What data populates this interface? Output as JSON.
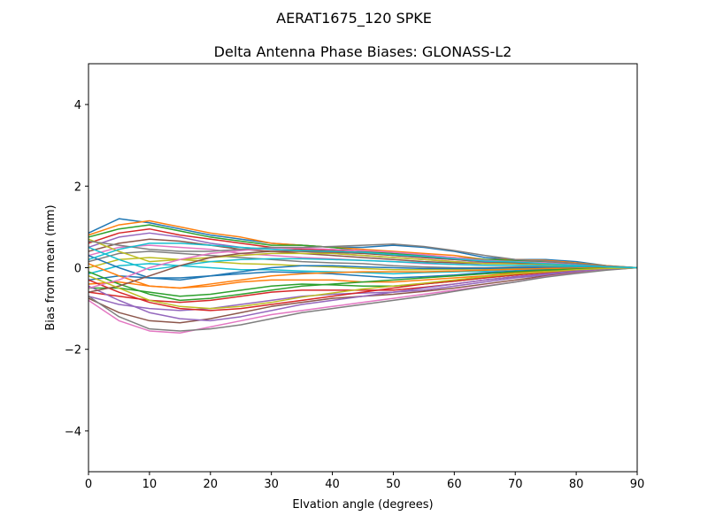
{
  "chart_data": {
    "type": "line",
    "suptitle": "AERAT1675_120   SPKE",
    "title": "Delta Antenna Phase Biases: GLONASS-L2",
    "xlabel": "Elvation angle (degrees)",
    "ylabel": "Bias from mean (mm)",
    "xlim": [
      0,
      90
    ],
    "ylim": [
      -5,
      5
    ],
    "xticks": [
      0,
      10,
      20,
      30,
      40,
      50,
      60,
      70,
      80,
      90
    ],
    "yticks": [
      -4,
      -2,
      0,
      2,
      4
    ],
    "grid": false,
    "x": [
      0,
      5,
      10,
      15,
      20,
      25,
      30,
      35,
      40,
      45,
      50,
      55,
      60,
      65,
      70,
      75,
      80,
      85,
      90
    ],
    "colors": [
      "#1f77b4",
      "#ff7f0e",
      "#2ca02c",
      "#d62728",
      "#9467bd",
      "#8c564b",
      "#e377c2",
      "#7f7f7f",
      "#bcbd22",
      "#17becf"
    ],
    "series": [
      {
        "values": [
          0.85,
          1.2,
          1.1,
          0.95,
          0.8,
          0.7,
          0.6,
          0.55,
          0.5,
          0.5,
          0.55,
          0.5,
          0.4,
          0.25,
          0.2,
          0.2,
          0.15,
          0.05,
          0
        ]
      },
      {
        "values": [
          0.8,
          1.05,
          1.15,
          1.0,
          0.85,
          0.75,
          0.6,
          0.55,
          0.5,
          0.45,
          0.4,
          0.35,
          0.3,
          0.2,
          0.2,
          0.18,
          0.12,
          0.05,
          0
        ]
      },
      {
        "values": [
          0.75,
          0.95,
          1.05,
          0.9,
          0.75,
          0.65,
          0.55,
          0.55,
          0.5,
          0.4,
          0.35,
          0.3,
          0.25,
          0.2,
          0.18,
          0.15,
          0.1,
          0.04,
          0
        ]
      },
      {
        "values": [
          0.6,
          0.85,
          0.95,
          0.8,
          0.7,
          0.6,
          0.5,
          0.45,
          0.42,
          0.38,
          0.3,
          0.25,
          0.2,
          0.15,
          0.15,
          0.12,
          0.08,
          0.03,
          0
        ]
      },
      {
        "values": [
          0.5,
          0.75,
          0.85,
          0.75,
          0.6,
          0.5,
          0.45,
          0.4,
          0.35,
          0.3,
          0.25,
          0.2,
          0.15,
          0.12,
          0.12,
          0.1,
          0.06,
          0.02,
          0
        ]
      },
      {
        "values": [
          0.4,
          0.6,
          0.7,
          0.65,
          0.55,
          0.45,
          0.4,
          0.35,
          0.3,
          0.25,
          0.2,
          0.15,
          0.12,
          0.1,
          0.1,
          0.08,
          0.05,
          0.02,
          0
        ]
      },
      {
        "values": [
          0.3,
          0.5,
          0.55,
          0.5,
          0.45,
          0.35,
          0.3,
          0.25,
          0.22,
          0.18,
          0.15,
          0.1,
          0.08,
          0.06,
          0.06,
          0.05,
          0.03,
          0.01,
          0
        ]
      },
      {
        "values": [
          0.15,
          0.35,
          0.4,
          0.35,
          0.3,
          0.25,
          0.2,
          0.15,
          0.12,
          0.1,
          0.05,
          0.02,
          0.0,
          0.0,
          0.02,
          0.03,
          0.02,
          0.01,
          0
        ]
      },
      {
        "values": [
          0.0,
          0.2,
          0.25,
          0.2,
          0.15,
          0.1,
          0.08,
          0.05,
          0.02,
          -0.02,
          -0.05,
          -0.05,
          -0.04,
          -0.03,
          -0.02,
          0.0,
          0.0,
          0.0,
          0
        ]
      },
      {
        "values": [
          -0.15,
          0.05,
          0.1,
          0.05,
          0.0,
          -0.05,
          -0.05,
          -0.08,
          -0.1,
          -0.12,
          -0.15,
          -0.12,
          -0.1,
          -0.08,
          -0.05,
          -0.03,
          -0.02,
          -0.01,
          0
        ]
      },
      {
        "values": [
          -0.3,
          -0.2,
          -0.25,
          -0.25,
          -0.2,
          -0.15,
          -0.1,
          -0.12,
          -0.15,
          -0.2,
          -0.25,
          -0.22,
          -0.18,
          -0.12,
          -0.08,
          -0.05,
          -0.03,
          -0.01,
          0
        ]
      },
      {
        "values": [
          -0.4,
          -0.35,
          -0.45,
          -0.5,
          -0.45,
          -0.35,
          -0.3,
          -0.3,
          -0.3,
          -0.35,
          -0.35,
          -0.3,
          -0.25,
          -0.2,
          -0.12,
          -0.08,
          -0.05,
          -0.02,
          0
        ]
      },
      {
        "values": [
          -0.5,
          -0.5,
          -0.6,
          -0.7,
          -0.65,
          -0.55,
          -0.45,
          -0.4,
          -0.42,
          -0.45,
          -0.45,
          -0.4,
          -0.33,
          -0.25,
          -0.18,
          -0.1,
          -0.06,
          -0.02,
          0
        ]
      },
      {
        "values": [
          -0.6,
          -0.7,
          -0.8,
          -0.85,
          -0.8,
          -0.7,
          -0.6,
          -0.55,
          -0.55,
          -0.55,
          -0.55,
          -0.48,
          -0.4,
          -0.3,
          -0.22,
          -0.15,
          -0.08,
          -0.03,
          0
        ]
      },
      {
        "values": [
          -0.7,
          -0.9,
          -1.0,
          -1.05,
          -1.0,
          -0.9,
          -0.8,
          -0.7,
          -0.65,
          -0.62,
          -0.6,
          -0.55,
          -0.45,
          -0.35,
          -0.25,
          -0.18,
          -0.1,
          -0.04,
          0
        ]
      },
      {
        "values": [
          -0.75,
          -1.1,
          -1.3,
          -1.35,
          -1.25,
          -1.1,
          -0.95,
          -0.85,
          -0.75,
          -0.7,
          -0.65,
          -0.58,
          -0.5,
          -0.4,
          -0.3,
          -0.2,
          -0.12,
          -0.05,
          0
        ]
      },
      {
        "values": [
          -0.8,
          -1.3,
          -1.55,
          -1.6,
          -1.45,
          -1.3,
          -1.15,
          -1.05,
          -0.95,
          -0.85,
          -0.75,
          -0.65,
          -0.55,
          -0.45,
          -0.35,
          -0.22,
          -0.13,
          -0.05,
          0
        ]
      },
      {
        "values": [
          -0.7,
          -1.2,
          -1.5,
          -1.55,
          -1.5,
          -1.4,
          -1.25,
          -1.1,
          -1.0,
          -0.9,
          -0.8,
          -0.7,
          -0.58,
          -0.46,
          -0.35,
          -0.23,
          -0.14,
          -0.06,
          0
        ]
      },
      {
        "values": [
          0.7,
          0.4,
          0.15,
          0.2,
          0.25,
          0.3,
          0.35,
          0.35,
          0.35,
          0.3,
          0.25,
          0.2,
          0.15,
          0.1,
          0.1,
          0.08,
          0.05,
          0.02,
          0
        ]
      },
      {
        "values": [
          0.5,
          0.2,
          -0.05,
          0.05,
          0.15,
          0.2,
          0.22,
          0.22,
          0.2,
          0.18,
          0.15,
          0.12,
          0.08,
          0.06,
          0.06,
          0.05,
          0.03,
          0.01,
          0
        ]
      },
      {
        "values": [
          0.3,
          0.0,
          -0.25,
          -0.3,
          -0.2,
          -0.1,
          0.0,
          0.05,
          0.05,
          0.02,
          0.0,
          -0.02,
          -0.02,
          -0.02,
          0.0,
          0.0,
          0.0,
          0.0,
          0
        ]
      },
      {
        "values": [
          0.1,
          -0.2,
          -0.45,
          -0.5,
          -0.4,
          -0.3,
          -0.2,
          -0.15,
          -0.12,
          -0.1,
          -0.1,
          -0.1,
          -0.08,
          -0.06,
          -0.04,
          -0.02,
          -0.01,
          0.0,
          0
        ]
      },
      {
        "values": [
          -0.1,
          -0.4,
          -0.65,
          -0.8,
          -0.75,
          -0.65,
          -0.55,
          -0.45,
          -0.4,
          -0.35,
          -0.3,
          -0.25,
          -0.2,
          -0.15,
          -0.1,
          -0.06,
          -0.03,
          -0.01,
          0
        ]
      },
      {
        "values": [
          -0.3,
          -0.6,
          -0.85,
          -1.0,
          -1.05,
          -1.0,
          -0.9,
          -0.8,
          -0.7,
          -0.6,
          -0.5,
          -0.4,
          -0.33,
          -0.25,
          -0.18,
          -0.12,
          -0.07,
          -0.02,
          0
        ]
      },
      {
        "values": [
          -0.45,
          -0.8,
          -1.1,
          -1.25,
          -1.3,
          -1.2,
          -1.05,
          -0.9,
          -0.8,
          -0.7,
          -0.6,
          -0.5,
          -0.4,
          -0.3,
          -0.22,
          -0.15,
          -0.08,
          -0.03,
          0
        ]
      },
      {
        "values": [
          -0.6,
          -0.45,
          -0.2,
          0.05,
          0.25,
          0.35,
          0.4,
          0.4,
          0.38,
          0.35,
          0.3,
          0.25,
          0.2,
          0.15,
          0.12,
          0.1,
          0.06,
          0.02,
          0
        ]
      },
      {
        "values": [
          -0.5,
          -0.3,
          0.0,
          0.2,
          0.35,
          0.42,
          0.48,
          0.48,
          0.45,
          0.42,
          0.38,
          0.32,
          0.25,
          0.18,
          0.15,
          0.12,
          0.07,
          0.03,
          0
        ]
      },
      {
        "values": [
          0.65,
          0.55,
          0.45,
          0.4,
          0.4,
          0.45,
          0.5,
          0.5,
          0.52,
          0.55,
          0.58,
          0.52,
          0.42,
          0.3,
          0.2,
          0.16,
          0.1,
          0.04,
          0
        ]
      },
      {
        "values": [
          -0.2,
          -0.5,
          -0.8,
          -0.95,
          -1.0,
          -0.95,
          -0.85,
          -0.72,
          -0.62,
          -0.52,
          -0.45,
          -0.38,
          -0.3,
          -0.22,
          -0.15,
          -0.1,
          -0.05,
          -0.02,
          0
        ]
      },
      {
        "values": [
          0.2,
          0.45,
          0.6,
          0.6,
          0.55,
          0.5,
          0.45,
          0.42,
          0.4,
          0.38,
          0.32,
          0.28,
          0.22,
          0.16,
          0.14,
          0.1,
          0.06,
          0.02,
          0
        ]
      }
    ]
  }
}
